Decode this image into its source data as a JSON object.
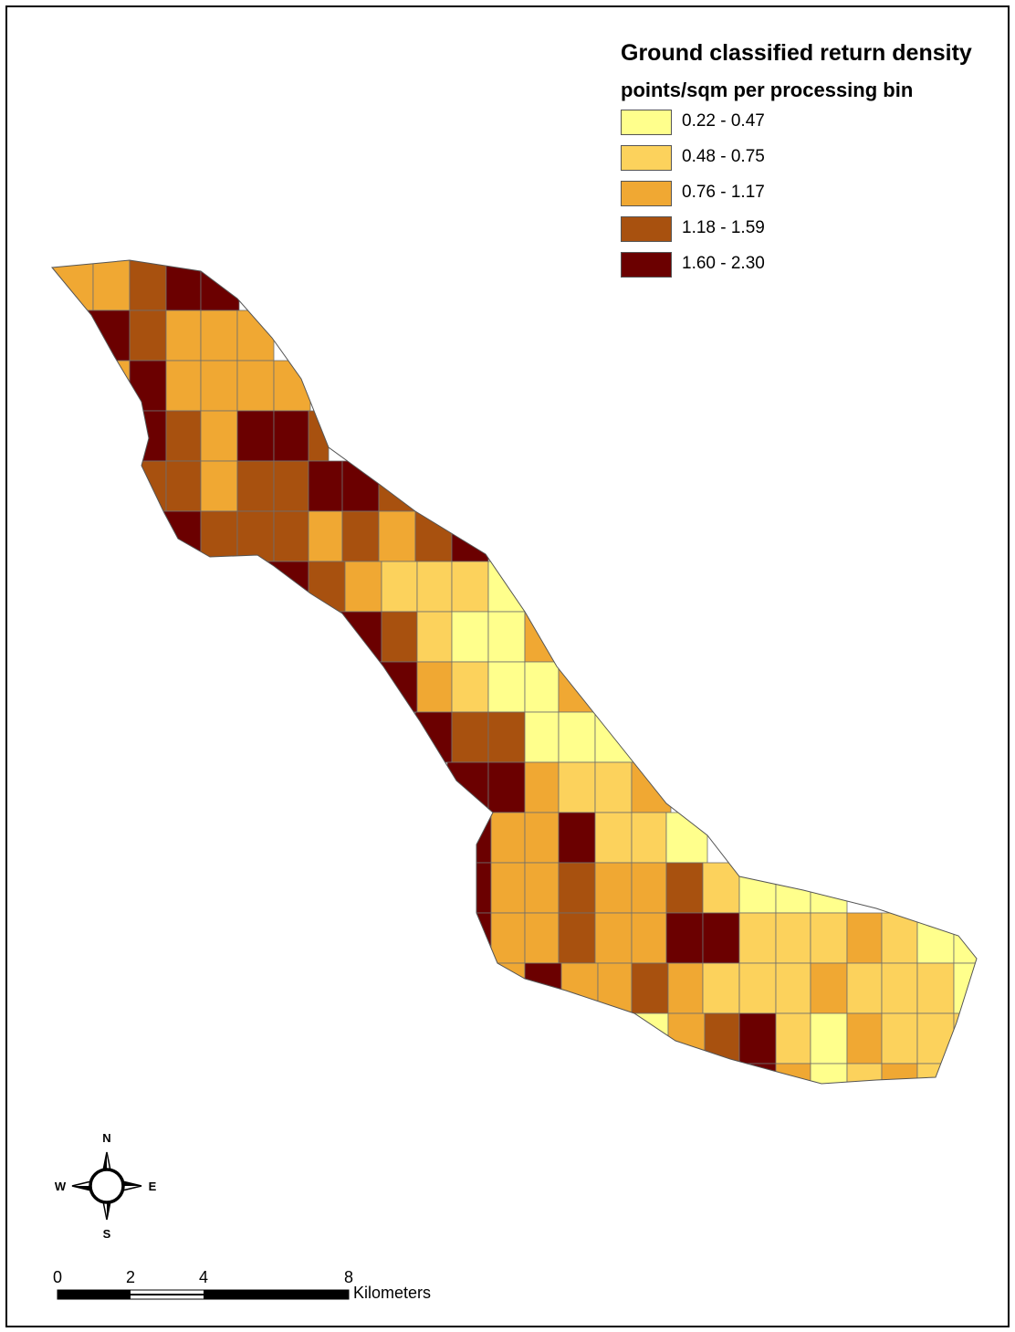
{
  "legend": {
    "title": "Ground classified return density",
    "subtitle": "points/sqm per processing bin",
    "classes": [
      {
        "label": "0.22 - 0.47",
        "color": "#ffff8c"
      },
      {
        "label": "0.48 - 0.75",
        "color": "#fcd25c"
      },
      {
        "label": "0.76 - 1.17",
        "color": "#f0a833"
      },
      {
        "label": "1.18 - 1.59",
        "color": "#a8510f"
      },
      {
        "label": "1.60 - 2.30",
        "color": "#6b0000"
      }
    ]
  },
  "compass": {
    "north": "N",
    "south": "S",
    "east": "E",
    "west": "W"
  },
  "scale_bar": {
    "ticks": [
      "0",
      "2",
      "4",
      "8"
    ],
    "unit": "Kilometers"
  }
}
